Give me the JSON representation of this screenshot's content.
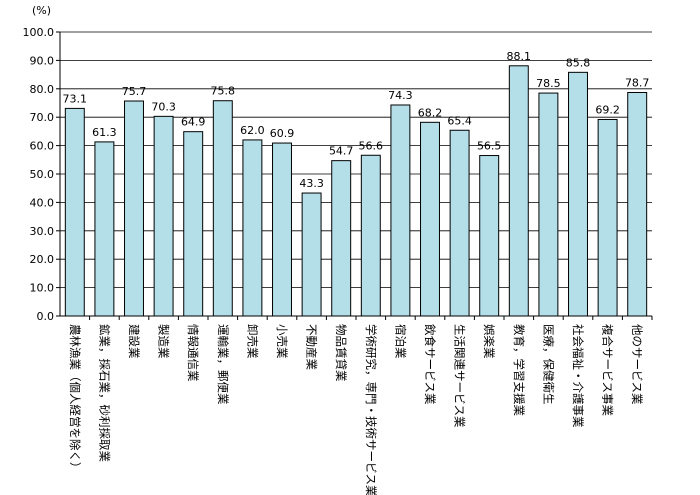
{
  "chart_data": {
    "type": "bar",
    "ylabel": "(%)",
    "ylim": [
      0,
      100
    ],
    "ytick_step": 10,
    "ytick_labels": [
      "0.0",
      "10.0",
      "20.0",
      "30.0",
      "40.0",
      "50.0",
      "60.0",
      "70.0",
      "80.0",
      "90.0",
      "100.0"
    ],
    "grid": true,
    "bar_color": "#b4dfe9",
    "bar_edge_color": "#000000",
    "categories": [
      "農林漁業（個人経営を除く）",
      "鉱業，採石業，砂利採取業",
      "建設業",
      "製造業",
      "情報通信業",
      "運輸業，郵便業",
      "卸売業",
      "小売業",
      "不動産業",
      "物品賃貸業",
      "学術研究，専門・技術サービス業",
      "宿泊業",
      "飲食サービス業",
      "生活関連サービス業",
      "娯楽業",
      "教育，学習支援業",
      "医療，保健衛生",
      "社会福祉・介護事業",
      "複合サービス事業",
      "他のサービス業"
    ],
    "values": [
      73.1,
      61.3,
      75.7,
      70.3,
      64.9,
      75.8,
      62.0,
      60.9,
      43.3,
      54.7,
      56.6,
      74.3,
      68.2,
      65.4,
      56.5,
      88.1,
      78.5,
      85.8,
      69.2,
      78.7
    ],
    "value_labels": [
      "73.1",
      "61.3",
      "75.7",
      "70.3",
      "64.9",
      "75.8",
      "62.0",
      "60.9",
      "43.3",
      "54.7",
      "56.6",
      "74.3",
      "68.2",
      "65.4",
      "56.5",
      "88.1",
      "78.5",
      "85.8",
      "69.2",
      "78.7"
    ]
  }
}
